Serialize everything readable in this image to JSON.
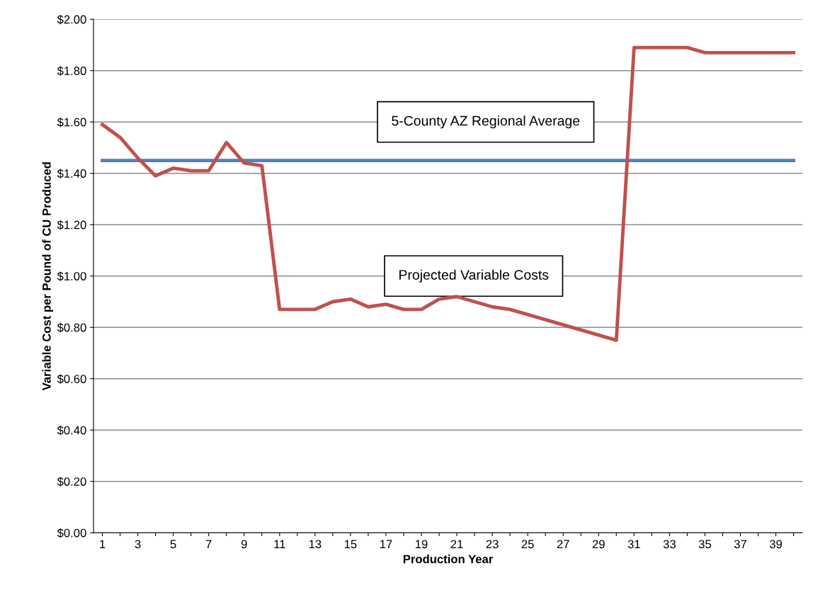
{
  "chart_data": {
    "type": "line",
    "xlabel": "Production Year",
    "ylabel": "Variable Cost per Pound of CU Produced",
    "categories": [
      "1",
      null,
      "3",
      null,
      "5",
      null,
      "7",
      null,
      "9",
      null,
      "11",
      null,
      "13",
      null,
      "15",
      null,
      "17",
      null,
      "19",
      null,
      "21",
      null,
      "23",
      null,
      "25",
      null,
      "27",
      null,
      "29",
      null,
      "31",
      null,
      "33",
      null,
      "35",
      null,
      "37",
      null,
      "39",
      null
    ],
    "series": [
      {
        "name": "Projected Variable Costs",
        "color": "#c0504d",
        "values": [
          1.59,
          1.54,
          1.46,
          1.39,
          1.42,
          1.41,
          1.41,
          1.52,
          1.44,
          1.43,
          0.87,
          0.87,
          0.87,
          0.9,
          0.91,
          0.88,
          0.89,
          0.87,
          0.87,
          0.91,
          0.92,
          0.9,
          0.88,
          0.87,
          0.85,
          0.83,
          0.81,
          0.79,
          0.77,
          0.75,
          1.89,
          1.89,
          1.89,
          1.89,
          1.87,
          1.87,
          1.87,
          1.87,
          1.87,
          1.87
        ]
      },
      {
        "name": "5-County AZ Regional Average",
        "color": "#4f81bd",
        "values": [
          1.45,
          1.45,
          1.45,
          1.45,
          1.45,
          1.45,
          1.45,
          1.45,
          1.45,
          1.45,
          1.45,
          1.45,
          1.45,
          1.45,
          1.45,
          1.45,
          1.45,
          1.45,
          1.45,
          1.45,
          1.45,
          1.45,
          1.45,
          1.45,
          1.45,
          1.45,
          1.45,
          1.45,
          1.45,
          1.45,
          1.45,
          1.45,
          1.45,
          1.45,
          1.45,
          1.45,
          1.45,
          1.45,
          1.45,
          1.45
        ]
      }
    ],
    "ylim": [
      0,
      2.0
    ],
    "yticks": [
      {
        "value": 0,
        "label": "$0.00"
      },
      {
        "value": 0.2,
        "label": "$0.20"
      },
      {
        "value": 0.4,
        "label": "$0.40"
      },
      {
        "value": 0.6,
        "label": "$0.60"
      },
      {
        "value": 0.8,
        "label": "$0.80"
      },
      {
        "value": 1.0,
        "label": "$1.00"
      },
      {
        "value": 1.2,
        "label": "$1.20"
      },
      {
        "value": 1.4,
        "label": "$1.40"
      },
      {
        "value": 1.6,
        "label": "$1.60"
      },
      {
        "value": 1.8,
        "label": "$1.80"
      },
      {
        "value": 2.0,
        "label": "$2.00"
      }
    ],
    "grid": "y",
    "legend": false,
    "marker": "none",
    "line_style": "solid"
  }
}
